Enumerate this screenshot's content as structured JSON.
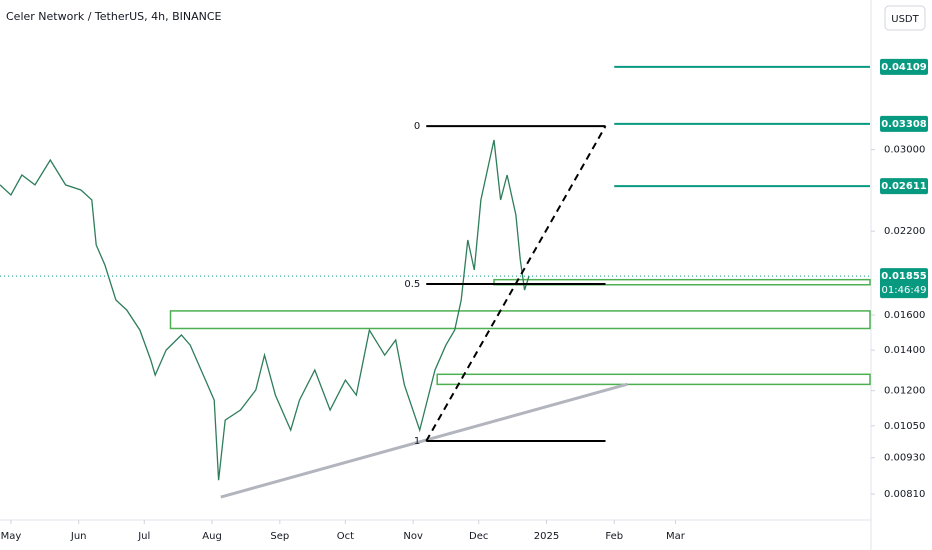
{
  "chart_data": {
    "type": "line",
    "title": "Celer Network / TetherUS, 4h, BINANCE",
    "currency": "USDT",
    "countdown": "01:46:49",
    "log_scale": true,
    "grid": false,
    "color": "#2e7d5b",
    "x": [
      -5,
      0,
      5,
      11,
      18,
      25,
      32,
      37,
      39,
      43,
      48,
      53,
      59,
      64,
      66,
      71,
      78,
      82,
      89,
      93,
      95,
      98,
      105,
      112,
      116,
      121,
      128,
      132,
      139,
      146,
      153,
      158,
      164,
      171,
      176,
      180,
      187,
      194,
      199,
      203,
      206,
      209,
      212,
      215,
      219,
      221,
      224,
      227,
      231,
      233,
      235,
      237
    ],
    "values": [
      0.02623,
      0.02525,
      0.02724,
      0.02623,
      0.02884,
      0.02623,
      0.02573,
      0.02478,
      0.02088,
      0.01935,
      0.01694,
      0.0163,
      0.01511,
      0.01348,
      0.01273,
      0.014,
      0.01483,
      0.01427,
      0.01249,
      0.01158,
      0.00854,
      0.01073,
      0.01115,
      0.01203,
      0.01374,
      0.0118,
      0.01033,
      0.01158,
      0.01298,
      0.01115,
      0.01249,
      0.0118,
      0.01511,
      0.01374,
      0.01455,
      0.01226,
      0.01033,
      0.01298,
      0.01427,
      0.01511,
      0.01694,
      0.02128,
      0.01899,
      0.02478,
      0.02884,
      0.03112,
      0.02478,
      0.02724,
      0.0234,
      0.01972,
      0.01759,
      0.01855
    ],
    "last_price": 0.01855,
    "xlim": [
      -5,
      393
    ],
    "xticks": [
      {
        "value": 0,
        "label": "May"
      },
      {
        "value": 31,
        "label": "Jun"
      },
      {
        "value": 61,
        "label": "Jul"
      },
      {
        "value": 92,
        "label": "Aug"
      },
      {
        "value": 123,
        "label": "Sep"
      },
      {
        "value": 153,
        "label": "Oct"
      },
      {
        "value": 184,
        "label": "Nov"
      },
      {
        "value": 214,
        "label": "Dec"
      },
      {
        "value": 245,
        "label": "2025"
      },
      {
        "value": 276,
        "label": "Feb"
      },
      {
        "value": 304,
        "label": "Mar"
      }
    ],
    "ylim": [
      0.00734,
      0.05298
    ],
    "yticks": [
      {
        "value": 0.03,
        "label": "0.03000"
      },
      {
        "value": 0.022,
        "label": "0.02200"
      },
      {
        "value": 0.016,
        "label": "0.01600"
      },
      {
        "value": 0.014,
        "label": "0.01400"
      },
      {
        "value": 0.012,
        "label": "0.01200"
      },
      {
        "value": 0.0105,
        "label": "0.01050"
      },
      {
        "value": 0.0093,
        "label": "0.00930"
      },
      {
        "value": 0.0081,
        "label": "0.00810"
      }
    ],
    "levels": [
      {
        "value": 0.04109,
        "start": 276
      },
      {
        "value": 0.03308,
        "start": 276
      },
      {
        "value": 0.02611,
        "start": 276
      }
    ],
    "fib_levels": [
      {
        "ratio": 0,
        "price": 0.0328,
        "start": 190,
        "end": 272
      },
      {
        "ratio": 0.5,
        "price": 0.018,
        "start": 190,
        "end": 272
      },
      {
        "ratio": 1,
        "price": 0.00991,
        "start": 190,
        "end": 272
      }
    ],
    "zones": [
      {
        "lo": 0.0152,
        "hi": 0.01625,
        "start": 73
      },
      {
        "lo": 0.01229,
        "hi": 0.01277,
        "start": 195
      },
      {
        "lo": 0.01795,
        "hi": 0.0183,
        "start": 221
      }
    ],
    "trendline": {
      "x": [
        96,
        282
      ],
      "values": [
        0.00801,
        0.0123
      ]
    }
  }
}
